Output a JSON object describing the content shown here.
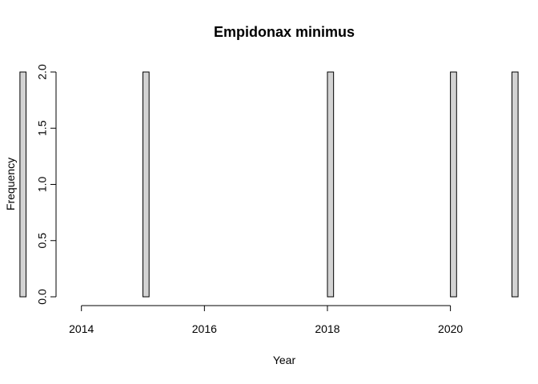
{
  "chart_data": {
    "type": "bar",
    "title": "Empidonax minimus",
    "xlabel": "Year",
    "ylabel": "Frequency",
    "bins": [
      {
        "x": 2013.0,
        "value": 2
      },
      {
        "x": 2015.0,
        "value": 2
      },
      {
        "x": 2018.0,
        "value": 2
      },
      {
        "x": 2020.0,
        "value": 2
      },
      {
        "x": 2021.0,
        "value": 2
      }
    ],
    "bin_width": 0.1,
    "x_range": [
      2013.0,
      2021.1
    ],
    "xlim": [
      2012.676,
      2021.424
    ],
    "ylim": [
      0,
      2
    ],
    "x_ticks": [
      2014,
      2016,
      2018,
      2020
    ],
    "x_tick_labels": [
      "2014",
      "2016",
      "2018",
      "2020"
    ],
    "y_ticks": [
      0,
      0.5,
      1,
      1.5,
      2
    ],
    "y_tick_labels": [
      "0.0",
      "0.5",
      "1.0",
      "1.5",
      "2.0"
    ],
    "bar_fill": "#d3d3d3",
    "bar_stroke": "#000000",
    "grid": false,
    "legend": "none"
  }
}
